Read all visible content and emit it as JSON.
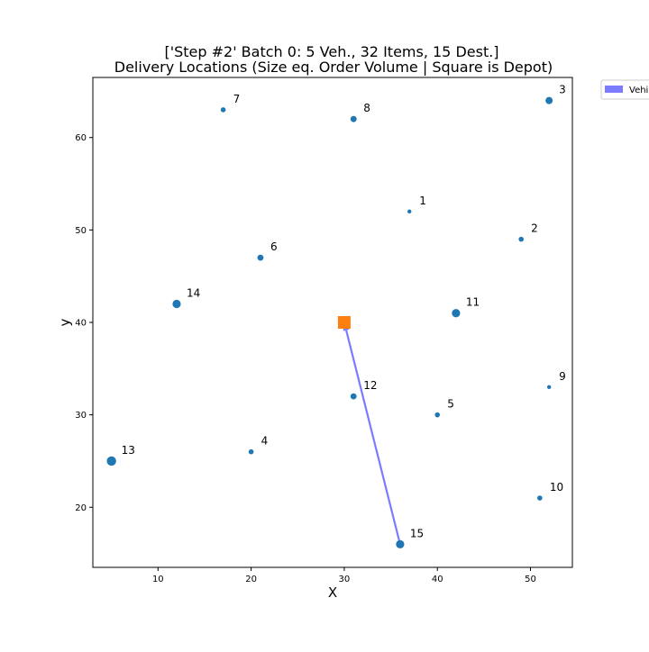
{
  "chart_data": {
    "type": "scatter",
    "title": [
      "['Step #2' Batch 0: 5 Veh., 32 Items, 15 Dest.]",
      "Delivery Locations (Size eq. Order Volume | Square is Depot)"
    ],
    "xlabel": "X",
    "ylabel": "y",
    "xlim": [
      3,
      54.5
    ],
    "ylim": [
      13.5,
      66.5
    ],
    "xticks": [
      10,
      20,
      30,
      40,
      50
    ],
    "yticks": [
      20,
      30,
      40,
      50,
      60
    ],
    "grid": false,
    "point_color": "#1f77b4",
    "depot": {
      "x": 30,
      "y": 40,
      "color": "#ff7f0e",
      "shape": "square"
    },
    "points": [
      {
        "label": "1",
        "x": 37,
        "y": 52,
        "size": 1
      },
      {
        "label": "2",
        "x": 49,
        "y": 49,
        "size": 2
      },
      {
        "label": "3",
        "x": 52,
        "y": 64,
        "size": 4
      },
      {
        "label": "4",
        "x": 20,
        "y": 26,
        "size": 2
      },
      {
        "label": "5",
        "x": 40,
        "y": 30,
        "size": 2
      },
      {
        "label": "6",
        "x": 21,
        "y": 47,
        "size": 3
      },
      {
        "label": "7",
        "x": 17,
        "y": 63,
        "size": 2
      },
      {
        "label": "8",
        "x": 31,
        "y": 62,
        "size": 3
      },
      {
        "label": "9",
        "x": 52,
        "y": 33,
        "size": 1
      },
      {
        "label": "10",
        "x": 51,
        "y": 21,
        "size": 2
      },
      {
        "label": "11",
        "x": 42,
        "y": 41,
        "size": 5
      },
      {
        "label": "12",
        "x": 31,
        "y": 32,
        "size": 3
      },
      {
        "label": "13",
        "x": 5,
        "y": 25,
        "size": 6
      },
      {
        "label": "14",
        "x": 12,
        "y": 42,
        "size": 5
      },
      {
        "label": "15",
        "x": 36,
        "y": 16,
        "size": 5
      }
    ],
    "routes": [
      {
        "from": {
          "x": 36,
          "y": 16
        },
        "to": {
          "x": 30,
          "y": 40
        },
        "color": "#7b7bff"
      }
    ],
    "legend": {
      "placement": "outside-top-right",
      "entries": [
        {
          "label": "Vehi",
          "color": "#7b7bff"
        }
      ]
    }
  }
}
